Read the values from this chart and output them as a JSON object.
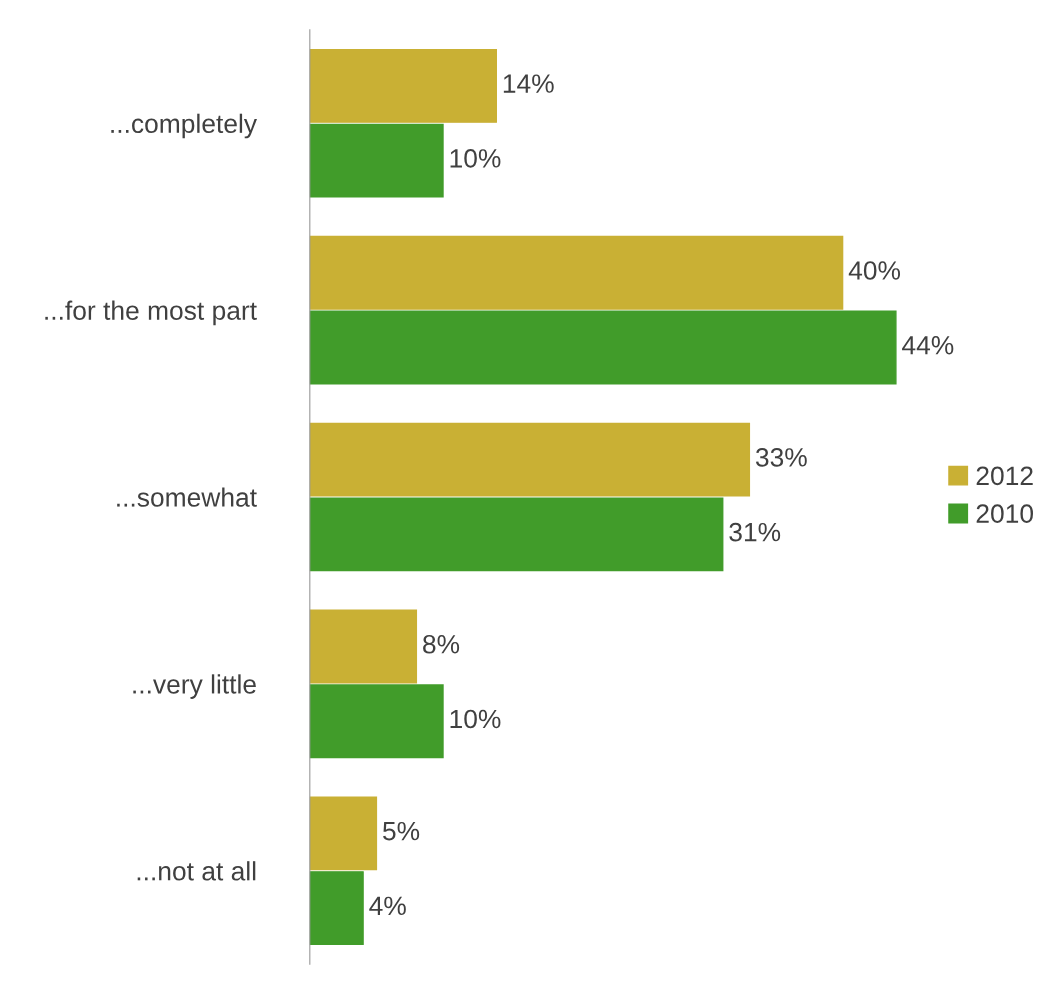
{
  "chart_data": {
    "type": "bar",
    "orientation": "horizontal",
    "categories": [
      "...completely",
      "...for the most part",
      "...somewhat",
      "...very little",
      "...not at all"
    ],
    "series": [
      {
        "name": "2012",
        "color": "#c9b034",
        "values": [
          14,
          40,
          33,
          8,
          5
        ],
        "value_labels": [
          "14%",
          "40%",
          "33%",
          "8%",
          "5%"
        ]
      },
      {
        "name": "2010",
        "color": "#419c2a",
        "values": [
          10,
          44,
          31,
          10,
          4
        ],
        "value_labels": [
          "10%",
          "44%",
          "31%",
          "10%",
          "4%"
        ]
      }
    ],
    "legend": "right",
    "grid": false,
    "tick_labels": "y"
  }
}
